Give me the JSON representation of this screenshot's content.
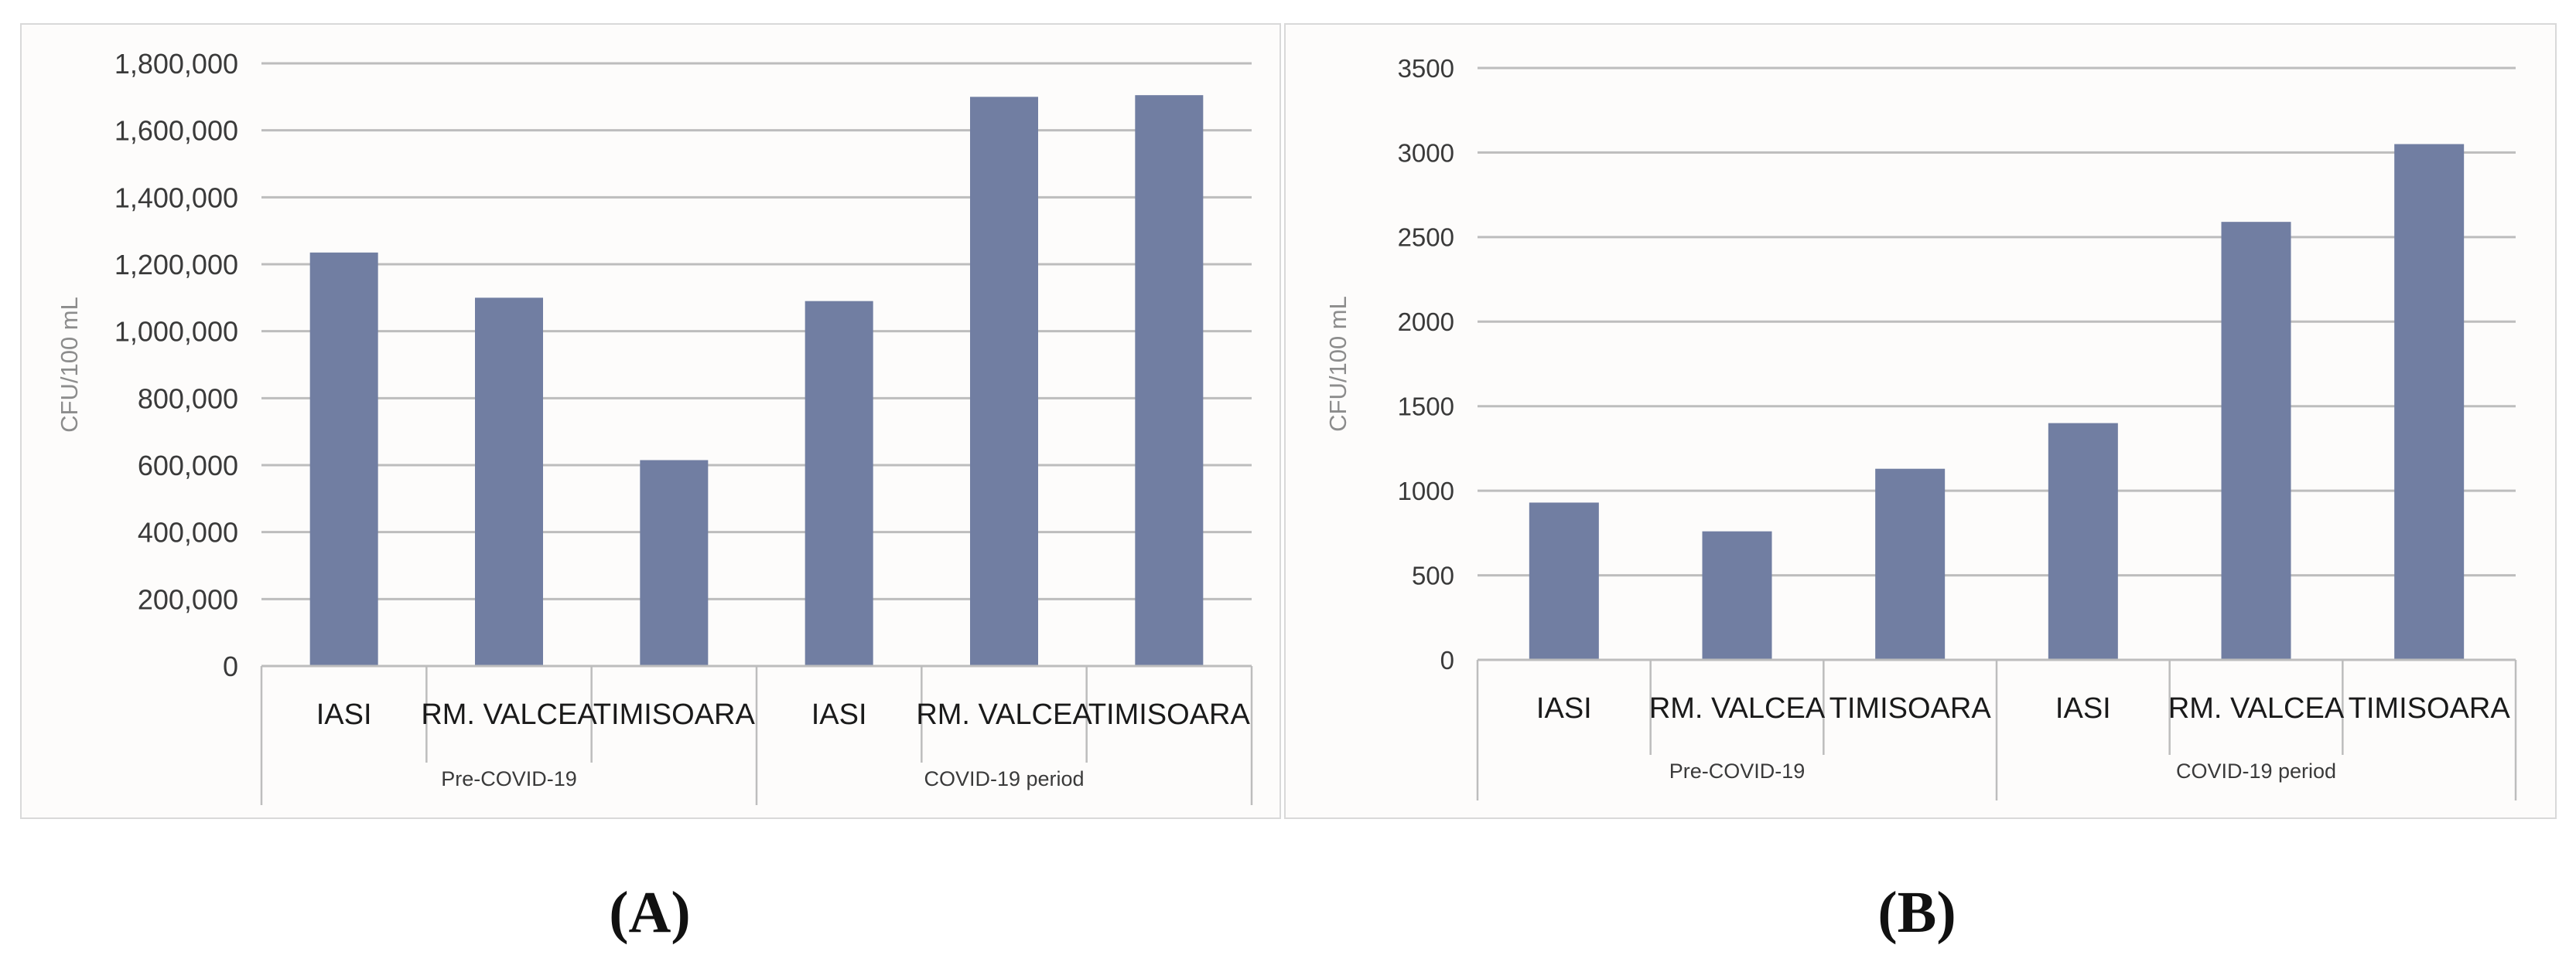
{
  "chart_data": [
    {
      "type": "bar",
      "title": "",
      "ylabel": "CFU/100 mL",
      "xlabel": "",
      "ylim": [
        0,
        1800000
      ],
      "yticks": [
        0,
        200000,
        400000,
        600000,
        800000,
        1000000,
        1200000,
        1400000,
        1600000,
        1800000
      ],
      "ytick_labels": [
        "0",
        "200,000",
        "400,000",
        "600,000",
        "800,000",
        "1,000,000",
        "1,200,000",
        "1,400,000",
        "1,600,000",
        "1,800,000"
      ],
      "grid": true,
      "categories": [
        "IASI",
        "RM. VALCEA",
        "TIMISOARA",
        "IASI",
        "RM. VALCEA",
        "TIMISOARA"
      ],
      "groups": [
        {
          "label": "Pre-COVID-19",
          "span": 3
        },
        {
          "label": "COVID-19 period",
          "span": 3
        }
      ],
      "values": [
        1235000,
        1100000,
        615000,
        1090000,
        1700000,
        1705000
      ],
      "bar_color": "#717ea2",
      "caption": "(A)"
    },
    {
      "type": "bar",
      "title": "",
      "ylabel": "CFU/100 mL",
      "xlabel": "",
      "ylim": [
        0,
        3500
      ],
      "yticks": [
        0,
        500,
        1000,
        1500,
        2000,
        2500,
        3000,
        3500
      ],
      "ytick_labels": [
        "0",
        "500",
        "1000",
        "1500",
        "2000",
        "2500",
        "3000",
        "3500"
      ],
      "grid": true,
      "categories": [
        "IASI",
        "RM. VALCEA",
        "TIMISOARA",
        "IASI",
        "RM. VALCEA",
        "TIMISOARA"
      ],
      "groups": [
        {
          "label": "Pre-COVID-19",
          "span": 3
        },
        {
          "label": "COVID-19 period",
          "span": 3
        }
      ],
      "values": [
        930,
        760,
        1130,
        1400,
        2590,
        3050
      ],
      "bar_color": "#717ea2",
      "caption": "(B)"
    }
  ]
}
